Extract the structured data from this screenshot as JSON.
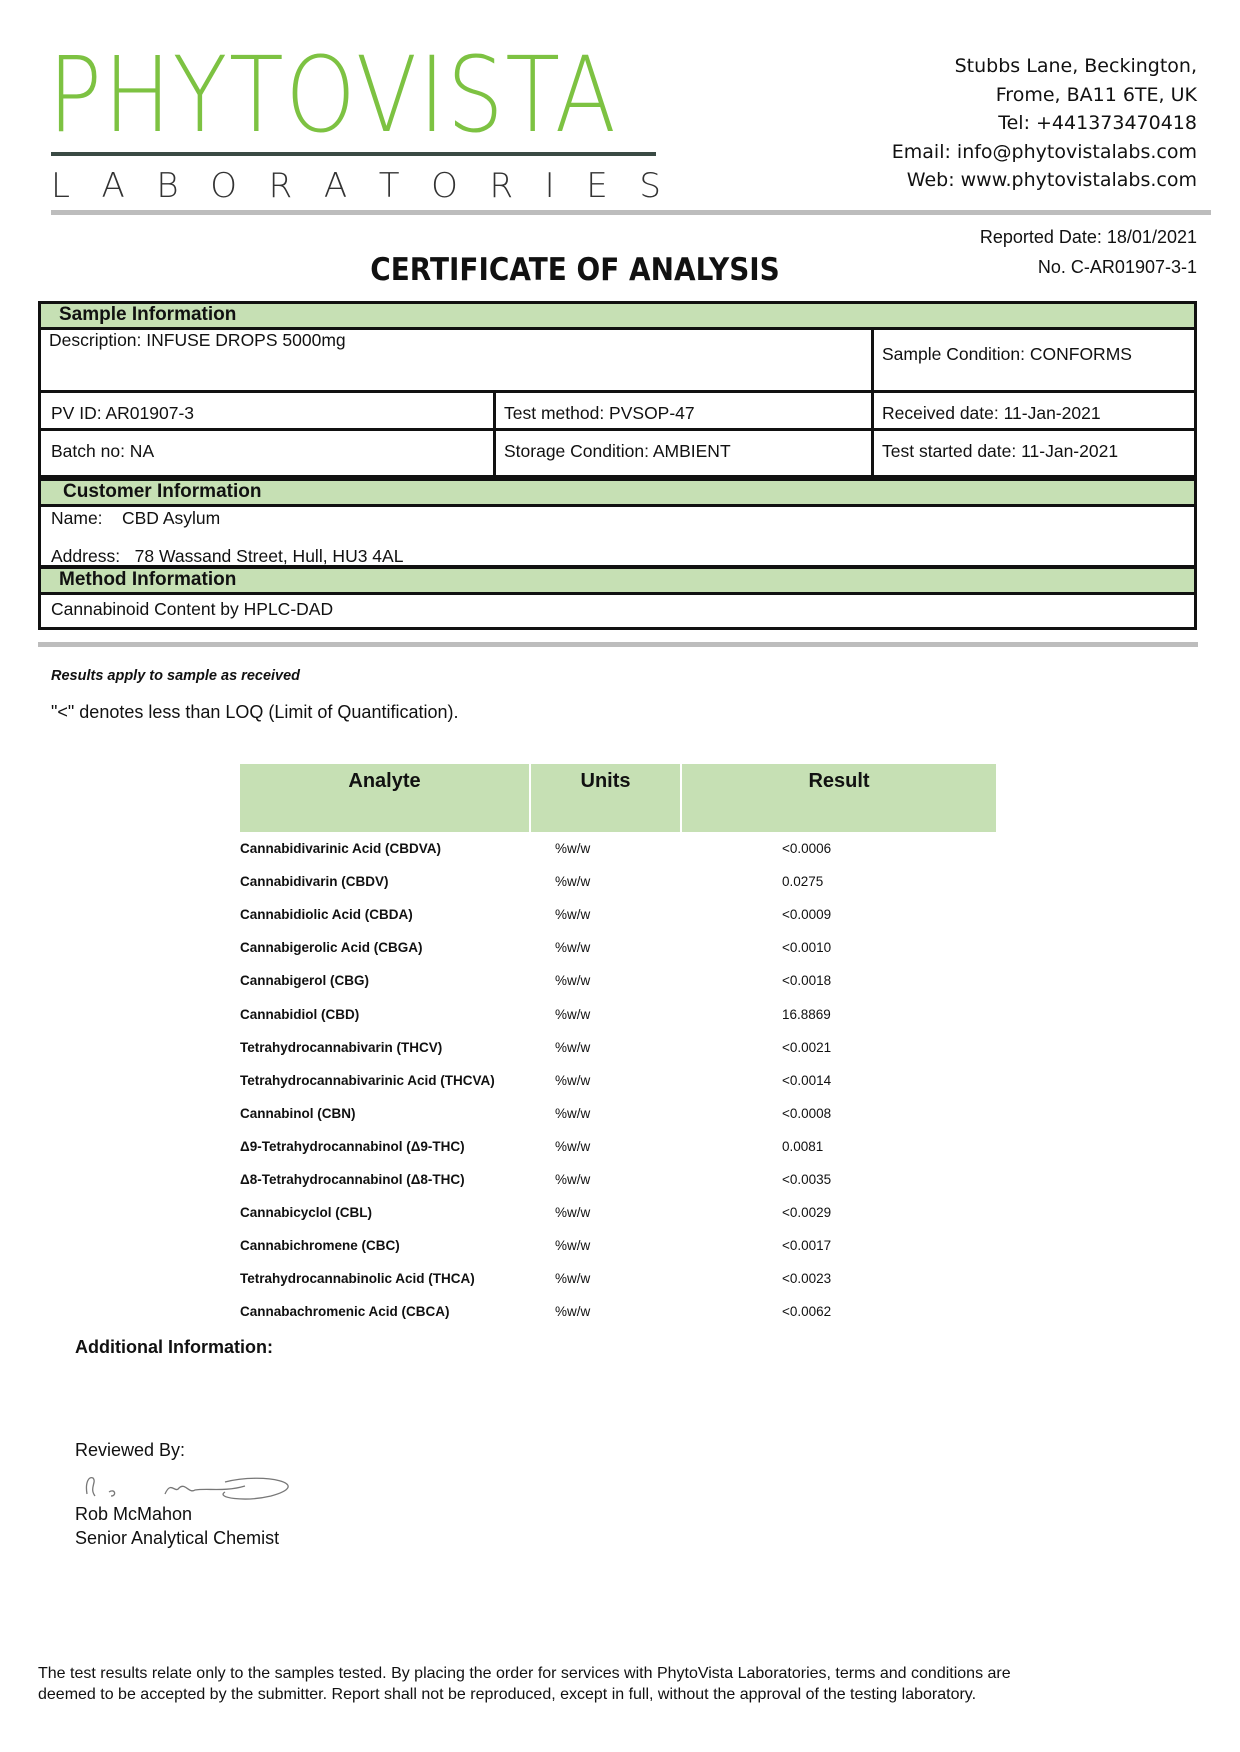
{
  "logo": {
    "name": "PHYTOVISTA",
    "sub": "LABORATORIES",
    "brand_color": "#7dc242"
  },
  "address": {
    "lines": [
      "Stubbs Lane, Beckington,",
      "Frome, BA11 6TE, UK",
      "Tel: +441373470418",
      "Email: info@phytovistalabs.com",
      "Web: www.phytovistalabs.com"
    ]
  },
  "report": {
    "reported_date": "Reported Date: 18/01/2021",
    "number": "No. C-AR01907-3-1",
    "title": "CERTIFICATE OF ANALYSIS"
  },
  "sample": {
    "heading": "Sample Information",
    "description": "Description: INFUSE DROPS 5000mg",
    "condition": "Sample Condition: CONFORMS",
    "pv_id": "PV ID: AR01907-3",
    "test_method": "Test method: PVSOP-47",
    "received": "Received date: 11-Jan-2021",
    "batch": "Batch no: NA",
    "storage": "Storage Condition: AMBIENT",
    "started": "Test started date: 11-Jan-2021"
  },
  "customer": {
    "heading": "Customer Information",
    "name_label": "Name:",
    "name": "CBD Asylum",
    "address_label": "Address:",
    "address": "78 Wassand Street, Hull, HU3 4AL"
  },
  "method": {
    "heading": "Method Information",
    "text": "Cannabinoid Content by HPLC-DAD"
  },
  "notes": {
    "results_apply": "Results apply to sample as received",
    "loq": "\"<\" denotes less than LOQ (Limit of Quantification)."
  },
  "results": {
    "headers": [
      "Analyte",
      "Units",
      "Result"
    ],
    "rows": [
      [
        "Cannabidivarinic Acid (CBDVA)",
        "%w/w",
        "<0.0006"
      ],
      [
        "Cannabidivarin (CBDV)",
        "%w/w",
        "0.0275"
      ],
      [
        "Cannabidiolic Acid (CBDA)",
        "%w/w",
        "<0.0009"
      ],
      [
        "Cannabigerolic Acid (CBGA)",
        "%w/w",
        "<0.0010"
      ],
      [
        "Cannabigerol (CBG)",
        "%w/w",
        "<0.0018"
      ],
      [
        "Cannabidiol (CBD)",
        "%w/w",
        "16.8869"
      ],
      [
        "Tetrahydrocannabivarin (THCV)",
        "%w/w",
        "<0.0021"
      ],
      [
        "Tetrahydrocannabivarinic Acid (THCVA)",
        "%w/w",
        "<0.0014"
      ],
      [
        "Cannabinol (CBN)",
        "%w/w",
        "<0.0008"
      ],
      [
        "Δ9-Tetrahydrocannabinol (Δ9-THC)",
        "%w/w",
        "0.0081"
      ],
      [
        "Δ8-Tetrahydrocannabinol (Δ8-THC)",
        "%w/w",
        "<0.0035"
      ],
      [
        "Cannabicyclol (CBL)",
        "%w/w",
        "<0.0029"
      ],
      [
        "Cannabichromene (CBC)",
        "%w/w",
        "<0.0017"
      ],
      [
        "Tetrahydrocannabinolic Acid (THCA)",
        "%w/w",
        "<0.0023"
      ],
      [
        "Cannabachromenic Acid (CBCA)",
        "%w/w",
        "<0.0062"
      ]
    ]
  },
  "additional": {
    "label": "Additional Information:"
  },
  "review": {
    "label": "Reviewed By:",
    "signature": "R. S. McMahon",
    "name": "Rob McMahon",
    "title": "Senior Analytical Chemist"
  },
  "footer": {
    "line1": "The test results relate only to the samples tested.  By placing the order for services with PhytoVista Laboratories, terms and conditions are",
    "line2": "deemed to be accepted by the submitter. Report shall not be reproduced, except in full, without the approval of the testing laboratory."
  }
}
